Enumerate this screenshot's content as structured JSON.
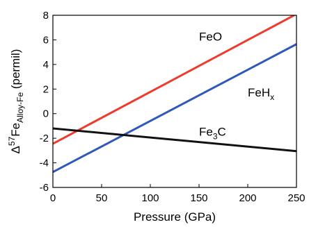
{
  "chart_data": {
    "type": "line",
    "xlabel": "Pressure (GPa)",
    "ylabel": {
      "prefix": "Δ",
      "superscript": "57",
      "main": "Fe",
      "subscript": "Alloy-Fe",
      "suffix": " (permil)"
    },
    "xlim": [
      0,
      250
    ],
    "ylim": [
      -6,
      8
    ],
    "xticks": [
      0,
      50,
      100,
      150,
      200,
      250
    ],
    "yticks": [
      -6,
      -4,
      -2,
      0,
      2,
      4,
      6,
      8
    ],
    "grid": false,
    "legend": "none",
    "series": [
      {
        "name": "FeO",
        "label": {
          "main": "FeO",
          "subscript": ""
        },
        "color": "#ee3b2e",
        "x": [
          0,
          250
        ],
        "y": [
          -2.45,
          8.1
        ],
        "label_at": [
          150,
          5.95
        ]
      },
      {
        "name": "FeHx",
        "label": {
          "main": "FeH",
          "subscript": "x"
        },
        "color": "#2f58b8",
        "x": [
          0,
          250
        ],
        "y": [
          -4.75,
          5.65
        ],
        "label_at": [
          200,
          1.4
        ]
      },
      {
        "name": "Fe3C",
        "label": {
          "main": "Fe",
          "subscript": "3",
          "tail": "C"
        },
        "color": "#111111",
        "x": [
          0,
          250
        ],
        "y": [
          -1.2,
          -3.05
        ],
        "label_at": [
          150,
          -1.8
        ]
      }
    ]
  }
}
